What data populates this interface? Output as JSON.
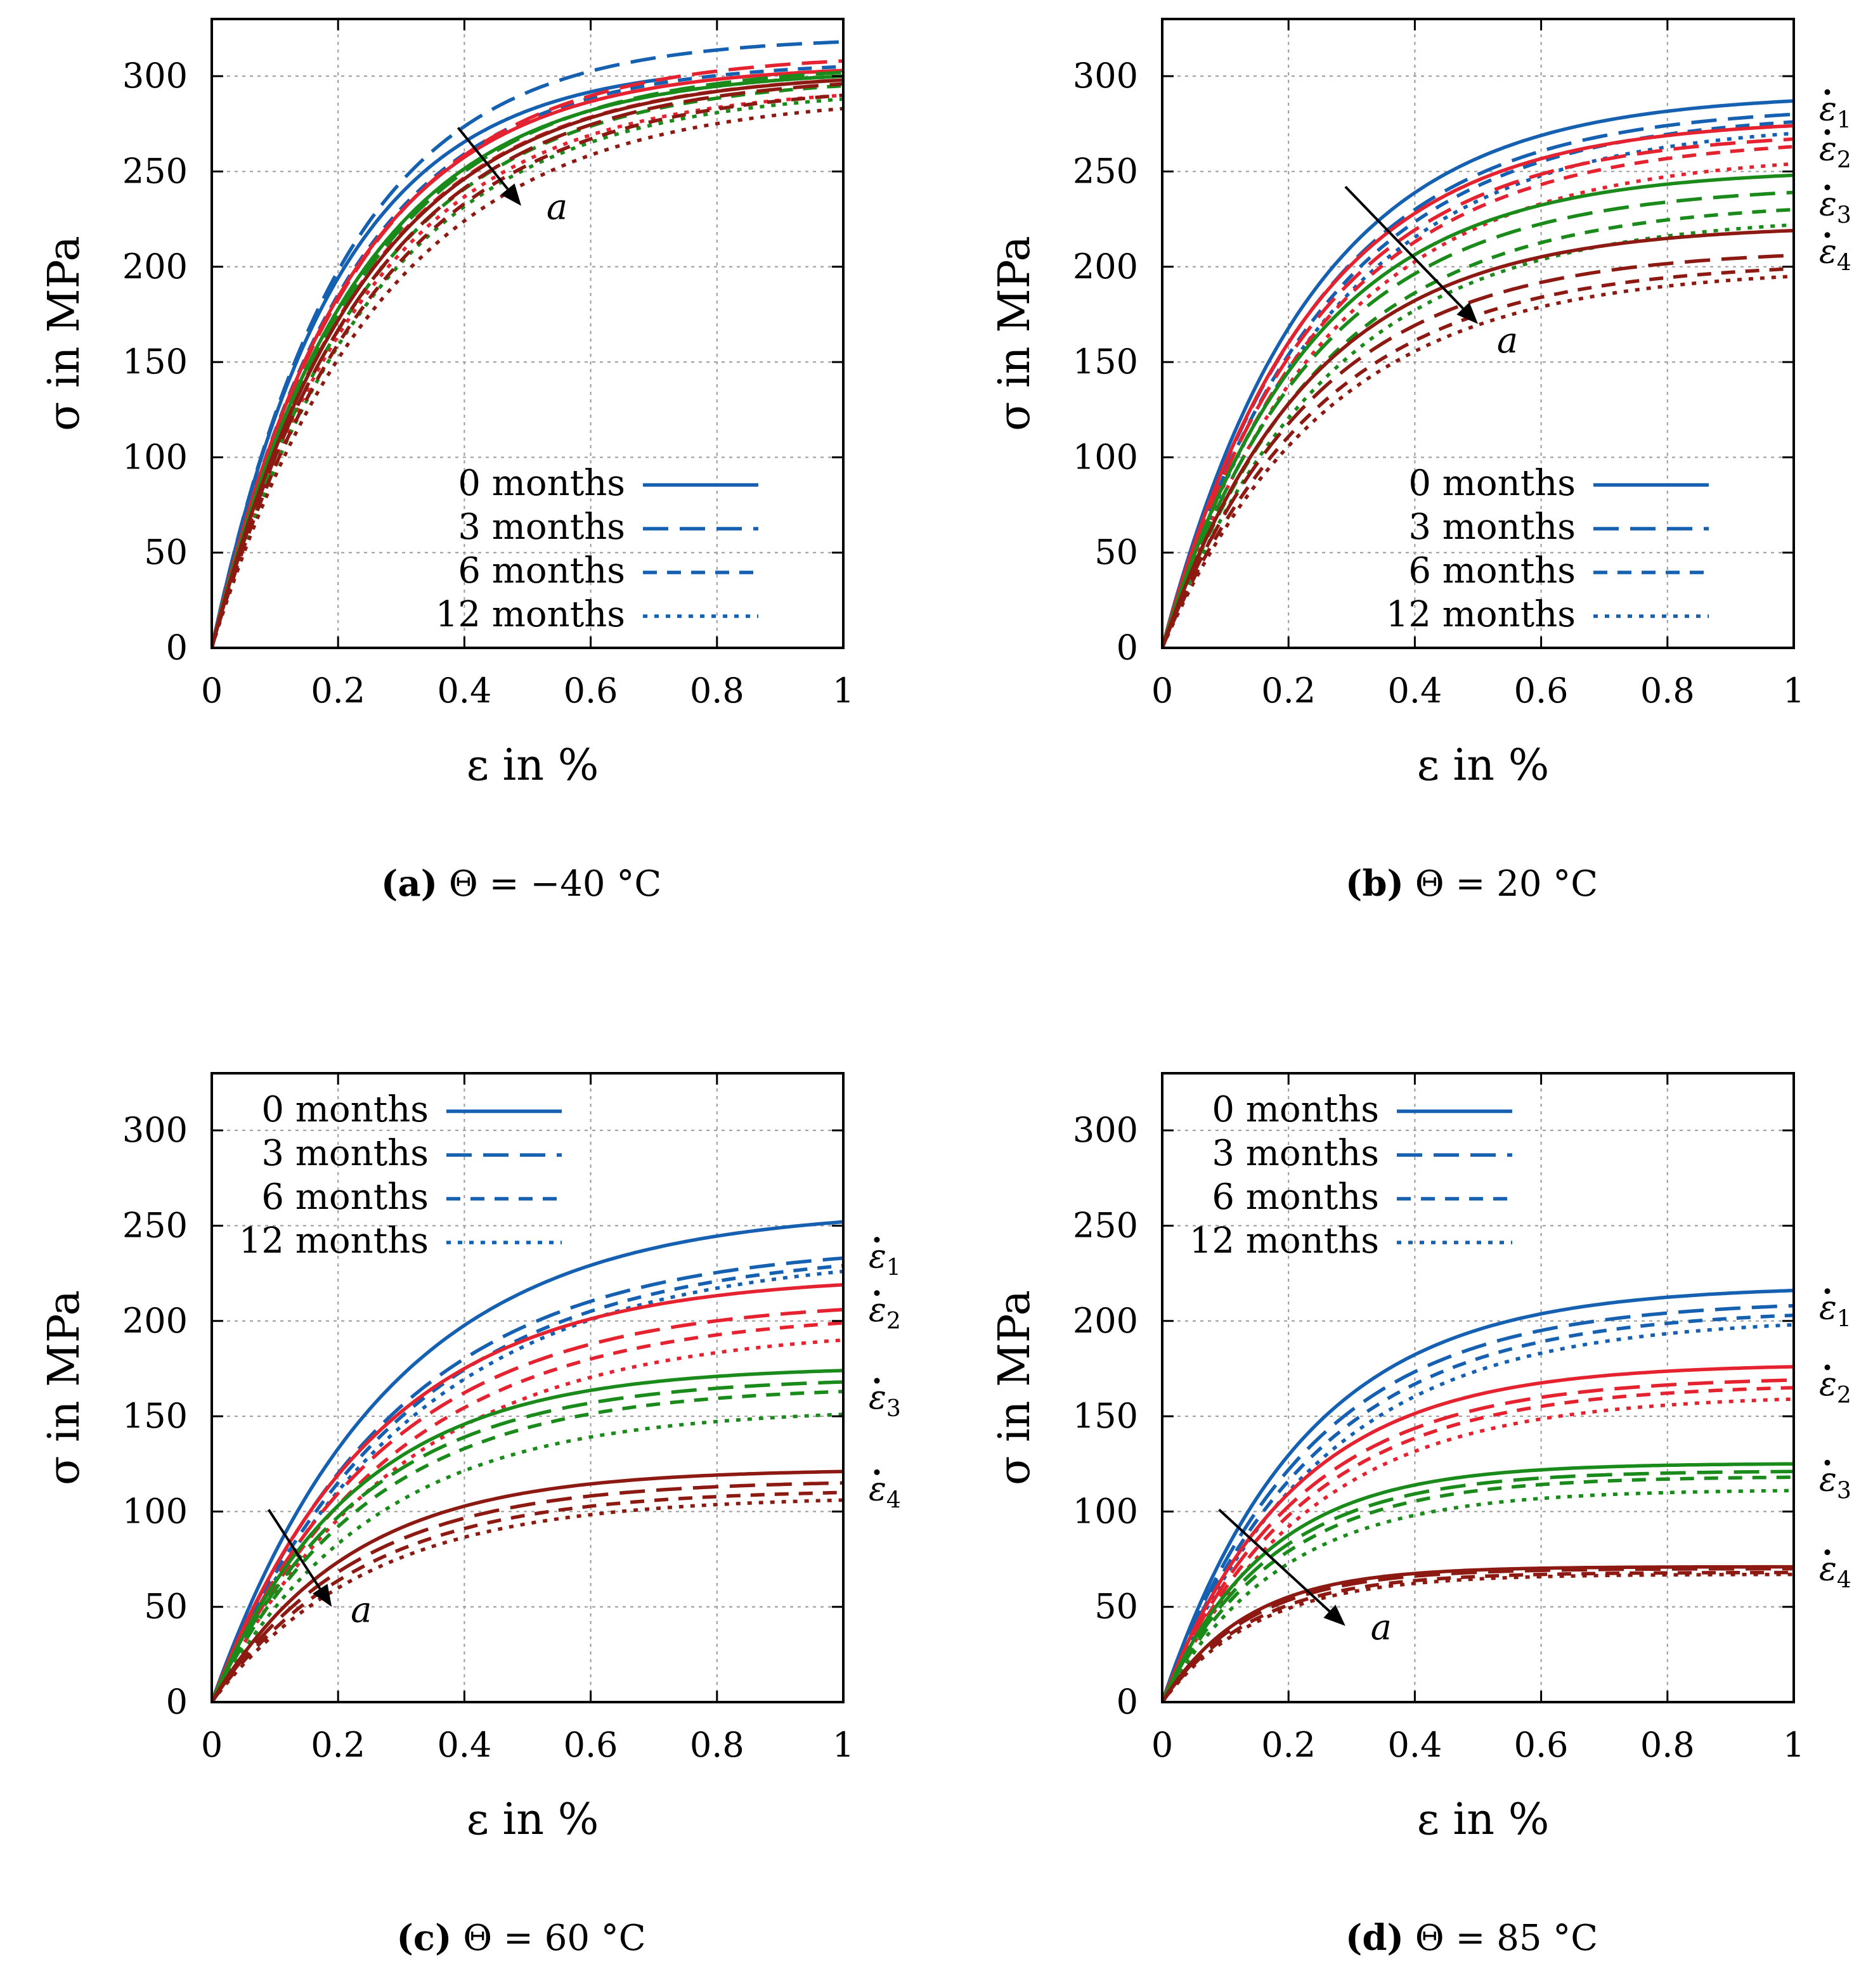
{
  "colors": {
    "series": [
      "#1560b0",
      "#e52330",
      "#1a8a1a",
      "#8c1a12"
    ],
    "axis": "#000000",
    "grid": "#9a9a9a"
  },
  "legend": [
    "0 months",
    "3 months",
    "6 months",
    "12 months"
  ],
  "x_label": "ε in %",
  "y_label": "σ in MPa",
  "arrow_label": "a",
  "rate_labels": [
    "ε̇1",
    "ε̇2",
    "ε̇3",
    "ε̇4"
  ],
  "chart_data": [
    {
      "type": "line",
      "panel": "a",
      "caption_letter": "(a)",
      "caption_text": "Θ = −40 °C",
      "xlim": [
        0,
        1
      ],
      "ylim": [
        0,
        330
      ],
      "xticks": [
        "0",
        "0.2",
        "0.4",
        "0.6",
        "0.8",
        "1"
      ],
      "yticks": [
        "0",
        "50",
        "100",
        "150",
        "200",
        "250",
        "300"
      ],
      "legend_position": "bottom-right",
      "show_rate_labels": false,
      "rate_label_values": [],
      "arrow": {
        "from": [
          0.39,
          273
        ],
        "to": [
          0.49,
          232
        ],
        "label_at": [
          0.53,
          225
        ]
      },
      "series_groups": [
        {
          "rate": "ε̇1",
          "color": "#1560b0",
          "sigma_max": [
            305,
            318,
            305,
            300
          ],
          "k": 5.0,
          "x_end": [
            0.72,
            1,
            1,
            1
          ]
        },
        {
          "rate": "ε̇2",
          "color": "#e52330",
          "sigma_max": [
            303,
            308,
            298,
            290
          ],
          "k": 4.6,
          "x_end": [
            1,
            1,
            1,
            1
          ]
        },
        {
          "rate": "ε̇3",
          "color": "#1a8a1a",
          "sigma_max": [
            300,
            302,
            295,
            288
          ],
          "k": 4.4,
          "x_end": [
            1,
            1,
            1,
            1
          ]
        },
        {
          "rate": "ε̇4",
          "color": "#8c1a12",
          "sigma_max": [
            298,
            296,
            290,
            283
          ],
          "k": 4.2,
          "x_end": [
            1,
            1,
            1,
            1
          ]
        }
      ]
    },
    {
      "type": "line",
      "panel": "b",
      "caption_letter": "(b)",
      "caption_text": "Θ = 20 °C",
      "xlim": [
        0,
        1
      ],
      "ylim": [
        0,
        330
      ],
      "xticks": [
        "0",
        "0.2",
        "0.4",
        "0.6",
        "0.8",
        "1"
      ],
      "yticks": [
        "0",
        "50",
        "100",
        "150",
        "200",
        "250",
        "300"
      ],
      "legend_position": "bottom-right",
      "show_rate_labels": true,
      "rate_label_values": [
        283,
        262,
        233,
        208
      ],
      "arrow": {
        "from": [
          0.29,
          242
        ],
        "to": [
          0.5,
          170
        ],
        "label_at": [
          0.53,
          155
        ]
      },
      "series_groups": [
        {
          "rate": "ε̇1",
          "color": "#1560b0",
          "sigma_max": [
            287,
            280,
            276,
            270
          ],
          "k": 4.3,
          "x_end": [
            1,
            1,
            1,
            1
          ]
        },
        {
          "rate": "ε̇2",
          "color": "#e52330",
          "sigma_max": [
            274,
            267,
            263,
            254
          ],
          "k": 4.3,
          "x_end": [
            1,
            1,
            1,
            1
          ]
        },
        {
          "rate": "ε̇3",
          "color": "#1a8a1a",
          "sigma_max": [
            248,
            239,
            230,
            222
          ],
          "k": 4.3,
          "x_end": [
            1,
            1,
            1,
            1
          ]
        },
        {
          "rate": "ε̇4",
          "color": "#8c1a12",
          "sigma_max": [
            219,
            206,
            199,
            195
          ],
          "k": 4.3,
          "x_end": [
            1,
            1,
            1,
            1
          ]
        }
      ]
    },
    {
      "type": "line",
      "panel": "c",
      "caption_letter": "(c)",
      "caption_text": "Θ = 60 °C",
      "xlim": [
        0,
        1
      ],
      "ylim": [
        0,
        330
      ],
      "xticks": [
        "0",
        "0.2",
        "0.4",
        "0.6",
        "0.8",
        "1"
      ],
      "yticks": [
        "0",
        "50",
        "100",
        "150",
        "200",
        "250",
        "300"
      ],
      "legend_position": "top-left",
      "show_rate_labels": true,
      "rate_label_values": [
        234,
        206,
        160,
        112
      ],
      "arrow": {
        "from": [
          0.09,
          101
        ],
        "to": [
          0.19,
          50
        ],
        "label_at": [
          0.22,
          42
        ]
      },
      "series_groups": [
        {
          "rate": "ε̇1",
          "color": "#1560b0",
          "sigma_max": [
            252,
            233,
            229,
            226
          ],
          "k": 3.6,
          "x_end": [
            1,
            1,
            1,
            1
          ]
        },
        {
          "rate": "ε̇2",
          "color": "#e52330",
          "sigma_max": [
            219,
            206,
            199,
            190
          ],
          "k": 3.8,
          "x_end": [
            1,
            1,
            1,
            1
          ]
        },
        {
          "rate": "ε̇3",
          "color": "#1a8a1a",
          "sigma_max": [
            174,
            168,
            163,
            151
          ],
          "k": 4.4,
          "x_end": [
            1,
            1,
            1,
            1
          ]
        },
        {
          "rate": "ε̇4",
          "color": "#8c1a12",
          "sigma_max": [
            121,
            115,
            110,
            106
          ],
          "k": 4.6,
          "x_end": [
            1,
            1,
            1,
            1
          ]
        }
      ]
    },
    {
      "type": "line",
      "panel": "d",
      "caption_letter": "(d)",
      "caption_text": "Θ = 85 °C",
      "xlim": [
        0,
        1
      ],
      "ylim": [
        0,
        330
      ],
      "xticks": [
        "0",
        "0.2",
        "0.4",
        "0.6",
        "0.8",
        "1"
      ],
      "yticks": [
        "0",
        "50",
        "100",
        "150",
        "200",
        "250",
        "300"
      ],
      "legend_position": "top-left",
      "show_rate_labels": true,
      "rate_label_values": [
        207,
        167,
        117,
        70
      ],
      "arrow": {
        "from": [
          0.09,
          101
        ],
        "to": [
          0.29,
          40
        ],
        "label_at": [
          0.33,
          33
        ]
      },
      "series_groups": [
        {
          "rate": "ε̇1",
          "color": "#1560b0",
          "sigma_max": [
            216,
            208,
            203,
            198
          ],
          "k": 4.5,
          "x_end": [
            1,
            1,
            1,
            1
          ]
        },
        {
          "rate": "ε̇2",
          "color": "#e52330",
          "sigma_max": [
            176,
            169,
            165,
            159
          ],
          "k": 4.8,
          "x_end": [
            1,
            1,
            1,
            1
          ]
        },
        {
          "rate": "ε̇3",
          "color": "#1a8a1a",
          "sigma_max": [
            125,
            121,
            118,
            111
          ],
          "k": 6.0,
          "x_end": [
            1,
            1,
            1,
            1
          ]
        },
        {
          "rate": "ε̇4",
          "color": "#8c1a12",
          "sigma_max": [
            71,
            70,
            68,
            67
          ],
          "k": 7.5,
          "x_end": [
            1,
            1,
            1,
            1
          ]
        }
      ]
    }
  ]
}
